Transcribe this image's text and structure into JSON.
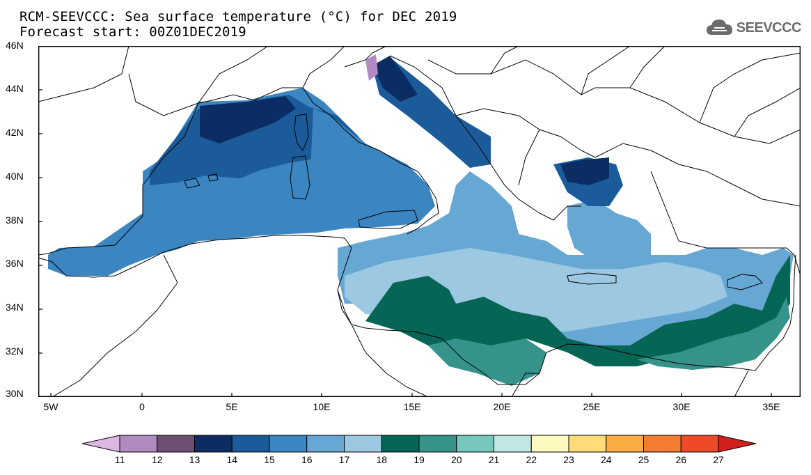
{
  "title": {
    "line1": "RCM-SEEVCCC: Sea surface temperature (°C) for DEC 2019",
    "line2": "Forecast start: 00Z01DEC2019"
  },
  "logo": {
    "text": "SEEVCCC",
    "icon": "cloud-icon"
  },
  "map": {
    "lat_labels": [
      "46N",
      "44N",
      "42N",
      "40N",
      "38N",
      "36N",
      "34N",
      "32N",
      "30N"
    ],
    "lon_labels": [
      "5W",
      "0",
      "5E",
      "10E",
      "15E",
      "20E",
      "25E",
      "30E",
      "35E"
    ],
    "lat_range": [
      30,
      46
    ],
    "lon_range": [
      -6,
      36.5
    ]
  },
  "legend": {
    "colors": [
      "#dcb9e1",
      "#b08ac0",
      "#6d4f74",
      "#0b2d63",
      "#1c5b9a",
      "#3b86c1",
      "#67a7d3",
      "#9cc8e2",
      "#066555",
      "#35938a",
      "#78c7be",
      "#c1e7e2",
      "#fdfac1",
      "#fedc7a",
      "#f9ac44",
      "#f37d32",
      "#ec4a29",
      "#d3201e"
    ],
    "labels": [
      "11",
      "12",
      "13",
      "14",
      "15",
      "16",
      "17",
      "18",
      "19",
      "20",
      "21",
      "22",
      "23",
      "24",
      "25",
      "26",
      "27"
    ]
  }
}
